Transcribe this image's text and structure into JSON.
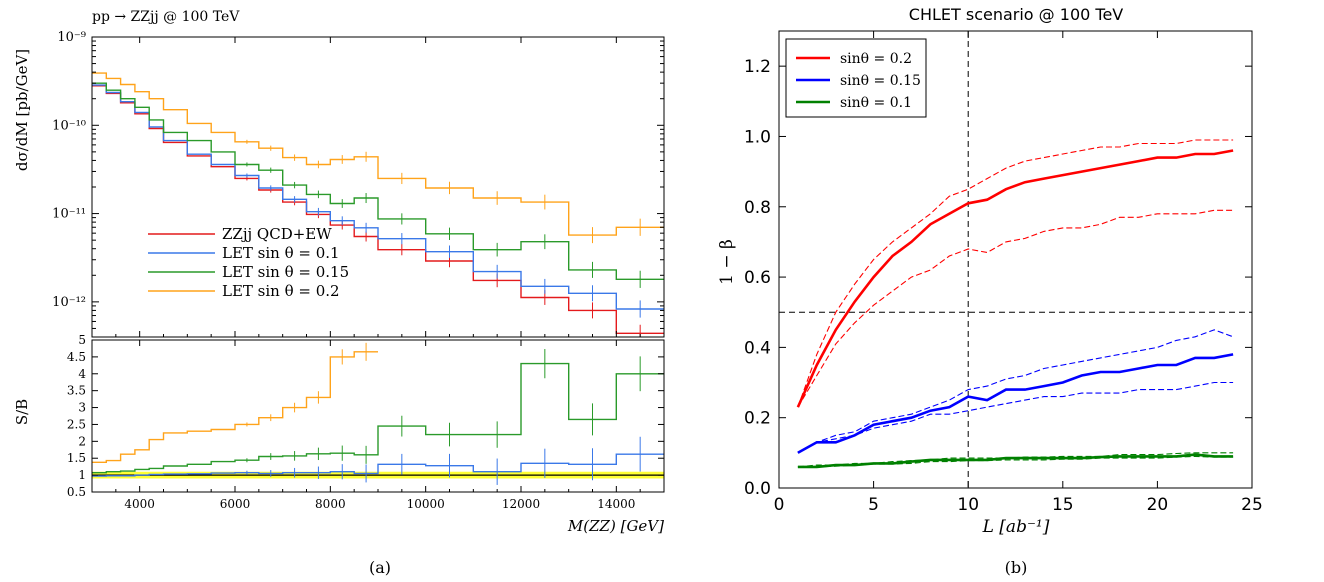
{
  "chart_data": [
    {
      "panel_label": "(a)",
      "type": "line",
      "title": "pp → ZZjj @ 100 TeV",
      "xlabel": "M(ZZ) [GeV]",
      "xlim": [
        3000,
        15000
      ],
      "xticks": [
        4000,
        6000,
        8000,
        10000,
        12000,
        14000
      ],
      "top": {
        "ylabel": "dσ/dM [pb/GeV]",
        "yscale": "log",
        "ylim": [
          4e-13,
          1e-09
        ],
        "yticks": [
          1e-12,
          1e-11,
          1e-10,
          1e-09
        ],
        "ytick_labels": [
          "10⁻¹²",
          "10⁻¹¹",
          "10⁻¹⁰",
          "10⁻⁹"
        ],
        "legend_position": "lower-left",
        "bins": [
          3000,
          3300,
          3600,
          3900,
          4200,
          4500,
          5000,
          5500,
          6000,
          6500,
          7000,
          7500,
          8000,
          8500,
          9000,
          10000,
          11000,
          12000,
          13000,
          14000,
          15000
        ],
        "series": [
          {
            "name": "ZZjj QCD+EW",
            "color": "#e41a1c",
            "values": [
              2.8e-10,
              2.3e-10,
              1.8e-10,
              1.35e-10,
              9.2e-11,
              6.4e-11,
              4.5e-11,
              3.4e-11,
              2.5e-11,
              1.85e-11,
              1.35e-11,
              9.8e-12,
              7.4e-12,
              5.5e-12,
              3.9e-12,
              2.9e-12,
              1.75e-12,
              1.12e-12,
              8e-13,
              4.4e-13
            ]
          },
          {
            "name": "LET sin θ = 0.1",
            "color": "#3a78e8",
            "values": [
              2.85e-10,
              2.35e-10,
              1.85e-10,
              1.4e-10,
              9.6e-11,
              6.7e-11,
              4.7e-11,
              3.6e-11,
              2.7e-11,
              1.95e-11,
              1.45e-11,
              1.05e-11,
              8.3e-12,
              6.9e-12,
              5.2e-12,
              3.7e-12,
              2.2e-12,
              1.5e-12,
              1.25e-12,
              8.3e-13
            ]
          },
          {
            "name": "LET sin θ = 0.15",
            "color": "#2a9a2a",
            "values": [
              3e-10,
              2.5e-10,
              2e-10,
              1.6e-10,
              1.15e-10,
              8.3e-11,
              6.7e-11,
              5e-11,
              3.6e-11,
              3.1e-11,
              2.1e-11,
              1.65e-11,
              1.3e-11,
              1.5e-11,
              8.7e-12,
              5.9e-12,
              3.9e-12,
              4.8e-12,
              2.3e-12,
              1.8e-12
            ]
          },
          {
            "name": "LET sin θ = 0.2",
            "color": "#ffa31a",
            "values": [
              3.9e-10,
              3.4e-10,
              2.9e-10,
              2.4e-10,
              2e-10,
              1.5e-10,
              1.05e-10,
              8.3e-11,
              6.5e-11,
              5.5e-11,
              4.3e-11,
              3.6e-11,
              4.1e-11,
              4.4e-11,
              2.5e-11,
              1.95e-11,
              1.5e-11,
              1.35e-11,
              5.7e-12,
              7e-12
            ]
          }
        ]
      },
      "bottom": {
        "ylabel": "S/B",
        "ylim": [
          0.5,
          5
        ],
        "yticks": [
          0.5,
          1,
          1.5,
          2,
          2.5,
          3,
          3.5,
          4,
          4.5,
          5
        ],
        "ytick_labels": [
          "0.5",
          "1",
          "1.5",
          "2",
          "2.5",
          "3",
          "3.5",
          "4",
          "4.5",
          "5"
        ],
        "band": [
          0.9,
          1.1
        ],
        "band_color": "#ffff33",
        "series": [
          {
            "name": "LET sin θ = 0.1",
            "color": "#3a78e8",
            "values": [
              0.97,
              0.98,
              0.98,
              1.0,
              1.02,
              1.03,
              1.04,
              1.06,
              1.07,
              1.05,
              1.07,
              1.07,
              1.1,
              1.05,
              1.32,
              1.28,
              1.1,
              1.35,
              1.32,
              1.62
            ]
          },
          {
            "name": "LET sin θ = 0.15",
            "color": "#2a9a2a",
            "values": [
              1.07,
              1.1,
              1.12,
              1.17,
              1.2,
              1.27,
              1.32,
              1.4,
              1.44,
              1.55,
              1.57,
              1.63,
              1.65,
              1.6,
              2.45,
              2.2,
              2.2,
              4.3,
              2.65,
              4.0
            ]
          },
          {
            "name": "LET sin θ = 0.2",
            "color": "#ffa31a",
            "values": [
              1.38,
              1.43,
              1.62,
              1.75,
              2.05,
              2.25,
              2.3,
              2.35,
              2.5,
              2.7,
              3.0,
              3.3,
              4.5,
              4.65,
              null,
              null,
              null,
              null,
              null,
              null
            ]
          }
        ]
      }
    },
    {
      "panel_label": "(b)",
      "type": "line",
      "title": "CHLET scenario @ 100 TeV",
      "xlabel": "L [ab⁻¹]",
      "ylabel": "1 − β",
      "xlim": [
        0,
        25
      ],
      "ylim": [
        0,
        1.3
      ],
      "xticks": [
        0,
        5,
        10,
        15,
        20,
        25
      ],
      "yticks": [
        0.0,
        0.2,
        0.4,
        0.6,
        0.8,
        1.0,
        1.2
      ],
      "xtick_labels": [
        "0",
        "5",
        "10",
        "15",
        "20",
        "25"
      ],
      "ytick_labels": [
        "0.0",
        "0.2",
        "0.4",
        "0.6",
        "0.8",
        "1.0",
        "1.2"
      ],
      "reference_lines": {
        "vertical_x": 10,
        "horizontal_y": 0.5
      },
      "legend_position": "upper-left",
      "x": [
        1,
        2,
        3,
        4,
        5,
        6,
        7,
        8,
        9,
        10,
        11,
        12,
        13,
        14,
        15,
        16,
        17,
        18,
        19,
        20,
        21,
        22,
        23,
        24
      ],
      "series": [
        {
          "name": "sinθ = 0.2",
          "color": "#ff0000",
          "values": [
            0.23,
            0.35,
            0.45,
            0.53,
            0.6,
            0.66,
            0.7,
            0.75,
            0.78,
            0.81,
            0.82,
            0.85,
            0.87,
            0.88,
            0.89,
            0.9,
            0.91,
            0.92,
            0.93,
            0.94,
            0.94,
            0.95,
            0.95,
            0.96
          ],
          "upper": [
            0.23,
            0.38,
            0.5,
            0.58,
            0.65,
            0.7,
            0.74,
            0.78,
            0.83,
            0.85,
            0.88,
            0.91,
            0.93,
            0.94,
            0.95,
            0.96,
            0.97,
            0.97,
            0.98,
            0.98,
            0.98,
            0.99,
            0.99,
            0.99
          ],
          "lower": [
            0.23,
            0.32,
            0.41,
            0.47,
            0.52,
            0.56,
            0.6,
            0.62,
            0.66,
            0.68,
            0.67,
            0.7,
            0.71,
            0.73,
            0.74,
            0.74,
            0.75,
            0.77,
            0.77,
            0.78,
            0.78,
            0.78,
            0.79,
            0.79
          ]
        },
        {
          "name": "sinθ = 0.15",
          "color": "#0000ff",
          "values": [
            0.1,
            0.13,
            0.13,
            0.15,
            0.18,
            0.19,
            0.2,
            0.22,
            0.23,
            0.26,
            0.25,
            0.28,
            0.28,
            0.29,
            0.3,
            0.32,
            0.33,
            0.33,
            0.34,
            0.35,
            0.35,
            0.37,
            0.37,
            0.38
          ],
          "upper": [
            0.1,
            0.13,
            0.15,
            0.16,
            0.19,
            0.2,
            0.21,
            0.23,
            0.25,
            0.28,
            0.29,
            0.31,
            0.32,
            0.34,
            0.35,
            0.36,
            0.37,
            0.38,
            0.39,
            0.4,
            0.42,
            0.43,
            0.45,
            0.43
          ],
          "lower": [
            0.1,
            0.13,
            0.14,
            0.15,
            0.17,
            0.18,
            0.19,
            0.21,
            0.21,
            0.22,
            0.23,
            0.24,
            0.25,
            0.26,
            0.26,
            0.27,
            0.27,
            0.27,
            0.28,
            0.28,
            0.28,
            0.29,
            0.3,
            0.3
          ]
        },
        {
          "name": "sinθ = 0.1",
          "color": "#008000",
          "values": [
            0.06,
            0.06,
            0.065,
            0.065,
            0.07,
            0.07,
            0.075,
            0.08,
            0.08,
            0.08,
            0.08,
            0.085,
            0.085,
            0.085,
            0.085,
            0.085,
            0.088,
            0.09,
            0.09,
            0.09,
            0.09,
            0.095,
            0.09,
            0.09
          ],
          "upper": [
            0.06,
            0.065,
            0.065,
            0.07,
            0.07,
            0.075,
            0.078,
            0.08,
            0.085,
            0.085,
            0.085,
            0.085,
            0.088,
            0.088,
            0.09,
            0.09,
            0.09,
            0.095,
            0.095,
            0.095,
            0.098,
            0.1,
            0.1,
            0.1
          ],
          "lower": [
            0.06,
            0.06,
            0.062,
            0.065,
            0.068,
            0.068,
            0.07,
            0.075,
            0.075,
            0.078,
            0.078,
            0.08,
            0.08,
            0.08,
            0.082,
            0.082,
            0.085,
            0.085,
            0.085,
            0.085,
            0.088,
            0.09,
            0.088,
            0.088
          ]
        }
      ]
    }
  ]
}
